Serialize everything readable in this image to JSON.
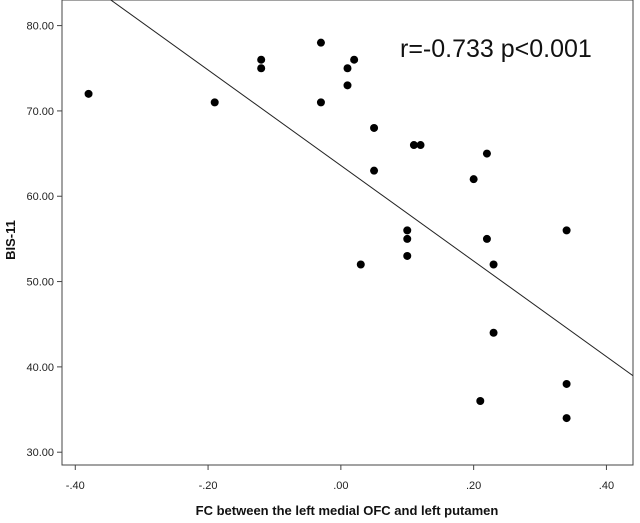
{
  "chart_data": {
    "type": "scatter",
    "title": "",
    "xlabel": "FC between the left medial OFC and left putamen",
    "ylabel": "BIS-11",
    "xlim": [
      -0.42,
      0.44
    ],
    "ylim": [
      28.5,
      83.0
    ],
    "x_ticks": [
      -0.4,
      -0.2,
      0.0,
      0.2,
      0.4
    ],
    "x_tick_labels": [
      "-.40",
      "-.20",
      ".00",
      ".20",
      ".40"
    ],
    "y_ticks": [
      30,
      40,
      50,
      60,
      70,
      80
    ],
    "y_tick_labels": [
      "30.00",
      "40.00",
      "50.00",
      "60.00",
      "70.00",
      "80.00"
    ],
    "grid": false,
    "legend": "none",
    "annotation": "r=-0.733 p<0.001",
    "points": [
      {
        "x": -0.38,
        "y": 72
      },
      {
        "x": -0.19,
        "y": 71
      },
      {
        "x": -0.12,
        "y": 76
      },
      {
        "x": -0.12,
        "y": 75
      },
      {
        "x": -0.03,
        "y": 78
      },
      {
        "x": -0.03,
        "y": 71
      },
      {
        "x": 0.02,
        "y": 76
      },
      {
        "x": 0.01,
        "y": 75
      },
      {
        "x": 0.01,
        "y": 73
      },
      {
        "x": 0.05,
        "y": 68
      },
      {
        "x": 0.11,
        "y": 66
      },
      {
        "x": 0.12,
        "y": 66
      },
      {
        "x": 0.05,
        "y": 63
      },
      {
        "x": 0.22,
        "y": 65
      },
      {
        "x": 0.2,
        "y": 62
      },
      {
        "x": 0.1,
        "y": 56
      },
      {
        "x": 0.1,
        "y": 55
      },
      {
        "x": 0.1,
        "y": 53
      },
      {
        "x": 0.03,
        "y": 52
      },
      {
        "x": 0.22,
        "y": 55
      },
      {
        "x": 0.23,
        "y": 52
      },
      {
        "x": 0.34,
        "y": 56
      },
      {
        "x": 0.23,
        "y": 44
      },
      {
        "x": 0.21,
        "y": 36
      },
      {
        "x": 0.34,
        "y": 38
      },
      {
        "x": 0.34,
        "y": 34
      }
    ],
    "fit_line": {
      "intercept": 63.6,
      "slope": -56.0
    },
    "colors": {
      "points": "#000000",
      "line": "#222222",
      "axes": "#444444"
    }
  }
}
